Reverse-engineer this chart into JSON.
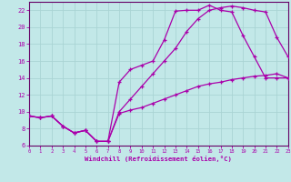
{
  "xlabel": "Windchill (Refroidissement éolien,°C)",
  "bg_color": "#c2e8e8",
  "line_color": "#aa00aa",
  "grid_color": "#aad4d4",
  "axis_color": "#660066",
  "xmin": 0,
  "xmax": 23,
  "ymin": 6,
  "ymax": 23,
  "yticks": [
    6,
    8,
    10,
    12,
    14,
    16,
    18,
    20,
    22
  ],
  "xticks": [
    0,
    1,
    2,
    3,
    4,
    5,
    6,
    7,
    8,
    9,
    10,
    11,
    12,
    13,
    14,
    15,
    16,
    17,
    18,
    19,
    20,
    21,
    22,
    23
  ],
  "series1_x": [
    0,
    1,
    2,
    3,
    4,
    5,
    6,
    7,
    8,
    9,
    10,
    11,
    12,
    13,
    14,
    15,
    16,
    17,
    18,
    19,
    20,
    21,
    22,
    23
  ],
  "series1_y": [
    9.5,
    9.3,
    9.5,
    8.3,
    7.5,
    7.8,
    6.5,
    6.5,
    13.5,
    15.0,
    15.5,
    16.0,
    18.5,
    21.9,
    22.0,
    22.0,
    22.6,
    22.0,
    21.8,
    19.0,
    16.5,
    14.0,
    14.0,
    14.0
  ],
  "series2_x": [
    0,
    1,
    2,
    3,
    4,
    5,
    6,
    7,
    8,
    9,
    10,
    11,
    12,
    13,
    14,
    15,
    16,
    17,
    18,
    19,
    20,
    21,
    22,
    23
  ],
  "series2_y": [
    9.5,
    9.3,
    9.5,
    8.3,
    7.5,
    7.8,
    6.5,
    6.5,
    10.0,
    11.5,
    13.0,
    14.5,
    16.0,
    17.5,
    19.5,
    21.0,
    22.0,
    22.3,
    22.5,
    22.3,
    22.0,
    21.8,
    18.8,
    16.5
  ],
  "series3_x": [
    0,
    1,
    2,
    3,
    4,
    5,
    6,
    7,
    8,
    9,
    10,
    11,
    12,
    13,
    14,
    15,
    16,
    17,
    18,
    19,
    20,
    21,
    22,
    23
  ],
  "series3_y": [
    9.5,
    9.3,
    9.5,
    8.3,
    7.5,
    7.8,
    6.5,
    6.5,
    9.8,
    10.2,
    10.5,
    11.0,
    11.5,
    12.0,
    12.5,
    13.0,
    13.3,
    13.5,
    13.8,
    14.0,
    14.2,
    14.3,
    14.5,
    14.0
  ]
}
